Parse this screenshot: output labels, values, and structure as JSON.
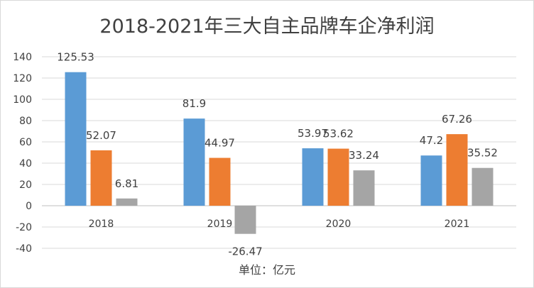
{
  "chart_data": {
    "type": "bar",
    "title": "2018-2021年三大自主品牌车企净利润",
    "categories": [
      "2018",
      "2019",
      "2020",
      "2021"
    ],
    "series": [
      {
        "values": [
          125.53,
          81.9,
          53.97,
          47.2
        ],
        "color": "#5b9bd5"
      },
      {
        "values": [
          52.07,
          44.97,
          53.62,
          67.26
        ],
        "color": "#ed7d31"
      },
      {
        "values": [
          6.81,
          -26.47,
          33.24,
          35.52
        ],
        "color": "#a5a5a5"
      }
    ],
    "ylim": [
      -40,
      140
    ],
    "yticks": [
      -40,
      -20,
      0,
      20,
      40,
      60,
      80,
      100,
      120,
      140
    ],
    "grid": true,
    "legend": "none",
    "note": "单位：亿元"
  }
}
